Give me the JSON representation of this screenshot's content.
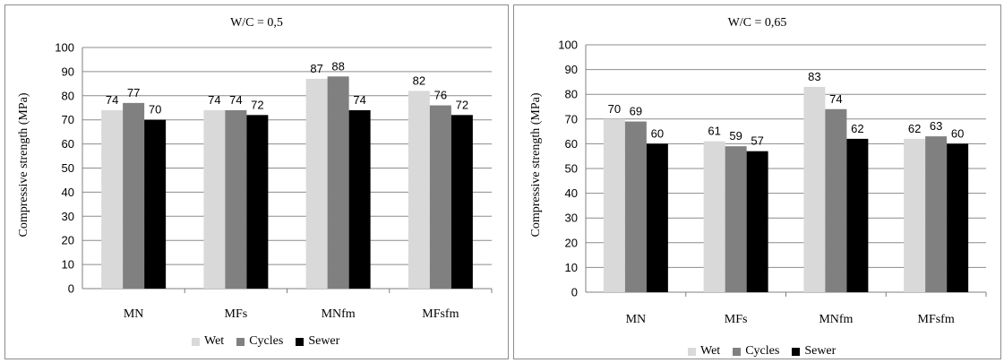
{
  "chart_data": [
    {
      "type": "bar",
      "title": "W/C = 0,5",
      "ylabel": "Compressive strength (MPa)",
      "xlabel": "",
      "ylim": [
        0,
        100
      ],
      "yticks": [
        0,
        10,
        20,
        30,
        40,
        50,
        60,
        70,
        80,
        90,
        100
      ],
      "grid": true,
      "legend_position": "bottom",
      "categories": [
        "MN",
        "MFs",
        "MNfm",
        "MFsfm"
      ],
      "series": [
        {
          "name": "Wet",
          "color": "#d9d9d9",
          "values": [
            74,
            74,
            87,
            82
          ]
        },
        {
          "name": "Cycles",
          "color": "#808080",
          "values": [
            77,
            74,
            88,
            76
          ]
        },
        {
          "name": "Sewer",
          "color": "#000000",
          "values": [
            70,
            72,
            74,
            72
          ]
        }
      ]
    },
    {
      "type": "bar",
      "title": "W/C = 0,65",
      "ylabel": "Compressive strength (MPa)",
      "xlabel": "",
      "ylim": [
        0,
        100
      ],
      "yticks": [
        0,
        10,
        20,
        30,
        40,
        50,
        60,
        70,
        80,
        90,
        100
      ],
      "grid": true,
      "legend_position": "bottom",
      "categories": [
        "MN",
        "MFs",
        "MNfm",
        "MFsfm"
      ],
      "series": [
        {
          "name": "Wet",
          "color": "#d9d9d9",
          "values": [
            70,
            61,
            83,
            62
          ]
        },
        {
          "name": "Cycles",
          "color": "#808080",
          "values": [
            69,
            59,
            74,
            63
          ]
        },
        {
          "name": "Sewer",
          "color": "#000000",
          "values": [
            60,
            57,
            62,
            60
          ]
        }
      ]
    }
  ]
}
